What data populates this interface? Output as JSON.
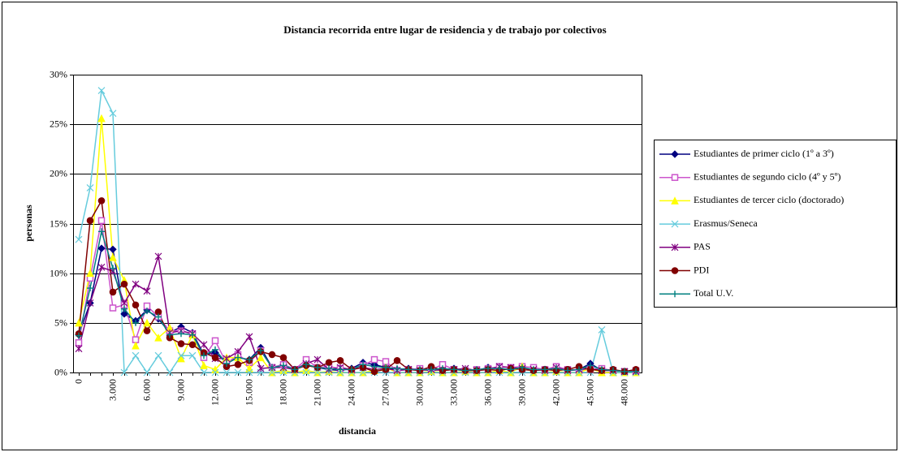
{
  "chart_data": {
    "type": "line",
    "title": "Distancia recorrida entre lugar de residencia y de trabajo por colectivos",
    "x_label": "distancia",
    "y_label": "personas",
    "categories": [
      "0",
      null,
      null,
      "3.000",
      null,
      null,
      "6.000",
      null,
      null,
      "9.000",
      null,
      null,
      "12.000",
      null,
      null,
      "15.000",
      null,
      null,
      "18.000",
      null,
      null,
      "21.000",
      null,
      null,
      "24.000",
      null,
      null,
      "27.000",
      null,
      null,
      "30.000",
      null,
      null,
      "33.000",
      null,
      null,
      "36.000",
      null,
      null,
      "39.000",
      null,
      null,
      "42.000",
      null,
      null,
      "45.000",
      null,
      null,
      "48.000",
      null
    ],
    "ylim": [
      0,
      30
    ],
    "yticks": [
      {
        "value": 0,
        "label": "0%"
      },
      {
        "value": 5,
        "label": "5%"
      },
      {
        "value": 10,
        "label": "10%"
      },
      {
        "value": 15,
        "label": "15%"
      },
      {
        "value": 20,
        "label": "20%"
      },
      {
        "value": 25,
        "label": "25%"
      },
      {
        "value": 30,
        "label": "30%"
      }
    ],
    "grid": true,
    "legend": "right",
    "series": [
      {
        "name": "Estudiantes de primer ciclo (1º a 3º)",
        "color": "#000080",
        "marker": "diamond",
        "values": [
          3.8,
          7,
          12.5,
          12.4,
          5.9,
          5.2,
          6.3,
          5.4,
          4,
          4.6,
          4,
          1.8,
          2,
          1,
          1.5,
          1.3,
          2.5,
          0.5,
          0.8,
          0.3,
          0.8,
          0.5,
          0.3,
          0.2,
          0.4,
          1,
          0.8,
          0.5,
          0.3,
          0.4,
          0.3,
          0.2,
          0.3,
          0.4,
          0.2,
          0.2,
          0.5,
          0.4,
          0.3,
          0.5,
          0.2,
          0.3,
          0.4,
          0.2,
          0.3,
          0.9,
          0.2,
          0.2,
          0.1,
          0.1
        ]
      },
      {
        "name": "Estudiantes de segundo ciclo (4º y 5º)",
        "color": "#cc55cc",
        "marker": "square",
        "values": [
          3,
          9.5,
          15.3,
          6.5,
          6.8,
          3.3,
          6.7,
          5.6,
          4.2,
          4.2,
          3.9,
          1.5,
          3.2,
          0.9,
          1.8,
          1,
          2.2,
          0.5,
          0.8,
          0.3,
          1.3,
          0.5,
          0.6,
          0.4,
          0.2,
          0.7,
          1.3,
          1.1,
          0.2,
          0.3,
          0.4,
          0.3,
          0.8,
          0.3,
          0.2,
          0.3,
          0.4,
          0.6,
          0.5,
          0.6,
          0.5,
          0.3,
          0.6,
          0.3,
          0.2,
          0.3,
          0.4,
          0.2,
          0.1,
          0.2
        ]
      },
      {
        "name": "Estudiantes de tercer ciclo (doctorado)",
        "color": "#ffff00",
        "marker": "triangle",
        "values": [
          5,
          10,
          25.6,
          11.6,
          9.3,
          2.7,
          5,
          3.5,
          4.5,
          1.4,
          3.8,
          0.7,
          0.3,
          1.5,
          1.5,
          0.4,
          1.5,
          0,
          0.2,
          0,
          0.2,
          0,
          0.1,
          0,
          0,
          0,
          0.2,
          0.5,
          0,
          0,
          0,
          0.1,
          0,
          0,
          0.1,
          0,
          0,
          0.2,
          0,
          0.6,
          0,
          0,
          0.1,
          0,
          0,
          0.4,
          0,
          0,
          0,
          0
        ]
      },
      {
        "name": "Erasmus/Seneca",
        "color": "#66ccdd",
        "marker": "x",
        "values": [
          13.4,
          18.6,
          28.4,
          26.1,
          0,
          1.7,
          0,
          1.7,
          0,
          1.7,
          1.7,
          0,
          0,
          0,
          0,
          0,
          0,
          0,
          0,
          0,
          0,
          0,
          0,
          0,
          0,
          0,
          0,
          0,
          0,
          0,
          0,
          0,
          0,
          0,
          0,
          0,
          0,
          0,
          0,
          0,
          0,
          0,
          0,
          0,
          0,
          0,
          4.3,
          0,
          0,
          0
        ]
      },
      {
        "name": "PAS",
        "color": "#800080",
        "marker": "star",
        "values": [
          2.4,
          7,
          10.6,
          10.2,
          7,
          8.9,
          8.2,
          11.7,
          4,
          4.2,
          3.9,
          2.8,
          1.4,
          1.4,
          2.1,
          3.6,
          0.4,
          0.5,
          0.5,
          0.3,
          0.9,
          1.3,
          0.3,
          0.5,
          0.3,
          0.5,
          0.3,
          0.4,
          0.2,
          0.3,
          0.2,
          0.3,
          0.2,
          0.3,
          0.4,
          0.2,
          0.3,
          0.6,
          0.5,
          0.4,
          0.3,
          0.2,
          0.5,
          0.2,
          0.3,
          0.4,
          0.2,
          0.2,
          0.1,
          0.1
        ]
      },
      {
        "name": "PDI",
        "color": "#800000",
        "marker": "circle",
        "values": [
          3.9,
          15.3,
          17.3,
          8.1,
          8.9,
          6.8,
          4.2,
          6.1,
          3.5,
          2.9,
          2.8,
          2,
          1.5,
          0.6,
          0.8,
          1.2,
          2.1,
          1.8,
          1.5,
          0.3,
          0.7,
          0.5,
          1,
          1.2,
          0.3,
          0.5,
          0.1,
          0.3,
          1.2,
          0.3,
          0.2,
          0.6,
          0.2,
          0.3,
          0.2,
          0.2,
          0.3,
          0.2,
          0.4,
          0.3,
          0.2,
          0.3,
          0.2,
          0.3,
          0.6,
          0.3,
          0.2,
          0.3,
          0.1,
          0.3
        ]
      },
      {
        "name": "Total U.V.",
        "color": "#008080",
        "marker": "plus",
        "values": [
          3.7,
          8.5,
          14.2,
          10.5,
          6.4,
          5,
          6.2,
          5.6,
          3.8,
          3.9,
          3.8,
          1.7,
          2.3,
          0.9,
          1.5,
          1.3,
          2.2,
          0.5,
          0.7,
          0.3,
          0.8,
          0.5,
          0.4,
          0.3,
          0.3,
          0.8,
          0.6,
          0.5,
          0.4,
          0.3,
          0.3,
          0.3,
          0.4,
          0.3,
          0.2,
          0.3,
          0.4,
          0.4,
          0.3,
          0.5,
          0.3,
          0.3,
          0.4,
          0.2,
          0.3,
          0.7,
          0.3,
          0.2,
          0.1,
          0.1
        ]
      }
    ]
  }
}
